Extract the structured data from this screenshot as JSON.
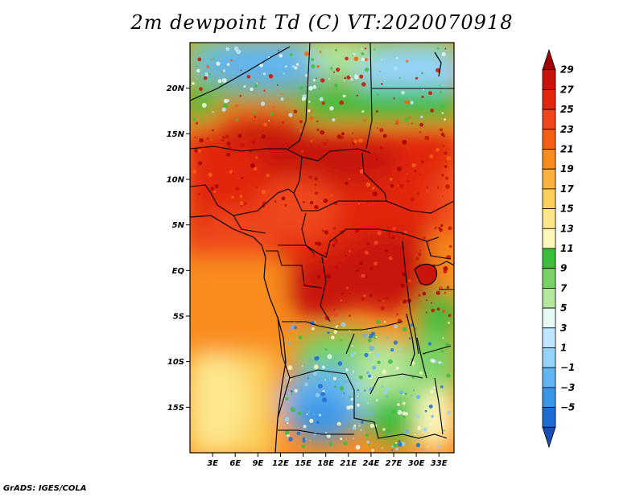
{
  "title": "2m dewpoint Td (C) VT:2020070918",
  "footer": "GrADS: IGES/COLA",
  "map": {
    "lon_range": [
      0,
      35
    ],
    "lat_range": [
      -20,
      25
    ],
    "y_ticks": [
      {
        "lat": 20,
        "label": "20N"
      },
      {
        "lat": 15,
        "label": "15N"
      },
      {
        "lat": 10,
        "label": "10N"
      },
      {
        "lat": 5,
        "label": "5N"
      },
      {
        "lat": 0,
        "label": "EQ"
      },
      {
        "lat": -5,
        "label": "5S"
      },
      {
        "lat": -10,
        "label": "10S"
      },
      {
        "lat": -15,
        "label": "15S"
      }
    ],
    "x_ticks": [
      {
        "lon": 3,
        "label": "3E"
      },
      {
        "lon": 6,
        "label": "6E"
      },
      {
        "lon": 9,
        "label": "9E"
      },
      {
        "lon": 12,
        "label": "12E"
      },
      {
        "lon": 15,
        "label": "15E"
      },
      {
        "lon": 18,
        "label": "18E"
      },
      {
        "lon": 21,
        "label": "21E"
      },
      {
        "lon": 24,
        "label": "24E"
      },
      {
        "lon": 27,
        "label": "27E"
      },
      {
        "lon": 30,
        "label": "30E"
      },
      {
        "lon": 33,
        "label": "33E"
      }
    ]
  },
  "colorbar": {
    "labels": [
      "29",
      "27",
      "25",
      "23",
      "21",
      "19",
      "17",
      "15",
      "13",
      "11",
      "9",
      "7",
      "5",
      "3",
      "1",
      "−1",
      "−3",
      "−5"
    ],
    "colors": [
      "#a50000",
      "#c8140a",
      "#e1280f",
      "#f0461e",
      "#f55f14",
      "#f98c1e",
      "#fbb23c",
      "#fbcf5a",
      "#fde68c",
      "#fdf7bc",
      "#3cbe3c",
      "#78d264",
      "#b4e69b",
      "#e6faf0",
      "#bee6ff",
      "#96d2fa",
      "#64b4f0",
      "#3c96e6",
      "#1e6ed2",
      "#1450b4"
    ]
  }
}
